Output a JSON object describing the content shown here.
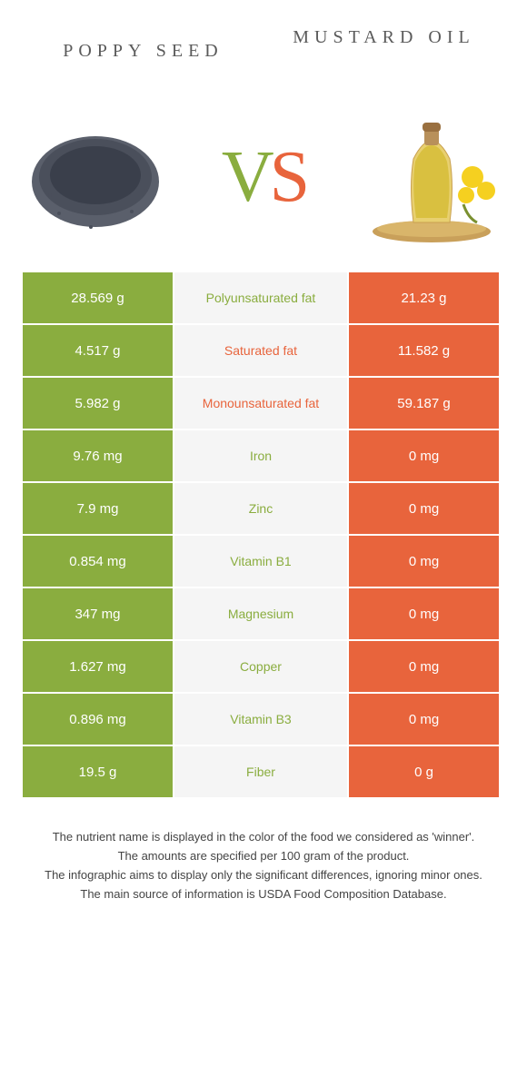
{
  "colors": {
    "left": "#8aad3f",
    "right": "#e8643c",
    "mid_bg": "#f5f5f5"
  },
  "header": {
    "left_title": "Poppy seed",
    "right_title": "Mustard oil"
  },
  "vs": {
    "v": "V",
    "s": "S"
  },
  "rows": [
    {
      "left": "28.569 g",
      "label": "Polyunsaturated fat",
      "right": "21.23 g",
      "winner": "left"
    },
    {
      "left": "4.517 g",
      "label": "Saturated fat",
      "right": "11.582 g",
      "winner": "right"
    },
    {
      "left": "5.982 g",
      "label": "Monounsaturated fat",
      "right": "59.187 g",
      "winner": "right"
    },
    {
      "left": "9.76 mg",
      "label": "Iron",
      "right": "0 mg",
      "winner": "left"
    },
    {
      "left": "7.9 mg",
      "label": "Zinc",
      "right": "0 mg",
      "winner": "left"
    },
    {
      "left": "0.854 mg",
      "label": "Vitamin B1",
      "right": "0 mg",
      "winner": "left"
    },
    {
      "left": "347 mg",
      "label": "Magnesium",
      "right": "0 mg",
      "winner": "left"
    },
    {
      "left": "1.627 mg",
      "label": "Copper",
      "right": "0 mg",
      "winner": "left"
    },
    {
      "left": "0.896 mg",
      "label": "Vitamin B3",
      "right": "0 mg",
      "winner": "left"
    },
    {
      "left": "19.5 g",
      "label": "Fiber",
      "right": "0 g",
      "winner": "left"
    }
  ],
  "footer": {
    "line1": "The nutrient name is displayed in the color of the food we considered as 'winner'.",
    "line2": "The amounts are specified per 100 gram of the product.",
    "line3": "The infographic aims to display only the significant differences, ignoring minor ones.",
    "line4": "The main source of information is USDA Food Composition Database."
  }
}
